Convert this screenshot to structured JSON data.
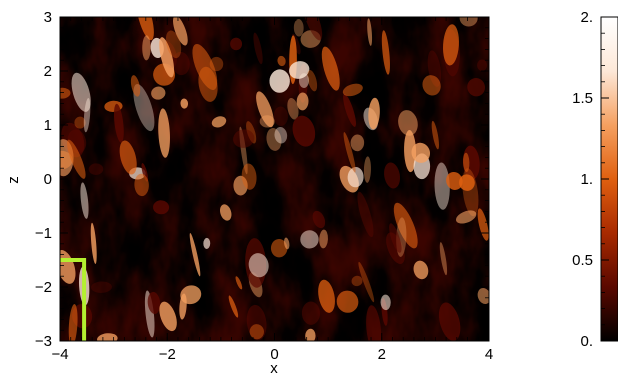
{
  "chart_data": [
    {
      "type": "heatmap",
      "xlabel": "x",
      "ylabel": "z",
      "xlim": [
        -4,
        4
      ],
      "ylim": [
        -3,
        3
      ],
      "xticks": [
        -4,
        -2,
        0,
        2,
        4
      ],
      "yticks": [
        -3,
        -2,
        -1,
        0,
        1,
        2,
        3
      ],
      "xtick_labels": [
        "−4",
        "−2",
        "0",
        "2",
        "4"
      ],
      "ytick_labels": [
        "−3",
        "−2",
        "−1",
        "0",
        "1",
        "2",
        "3"
      ],
      "colormap": [
        "#000000",
        "#5a0800",
        "#a82a00",
        "#e06010",
        "#f5a060",
        "#fde8d8",
        "#ffffff"
      ],
      "overlay": {
        "color": "#b4f030",
        "path": [
          [
            -4.0,
            -1.5
          ],
          [
            -3.55,
            -1.5
          ],
          [
            -3.55,
            -3.0
          ]
        ]
      }
    },
    {
      "type": "colorbar",
      "range": [
        0.0,
        2.0
      ],
      "ticks": [
        0.0,
        0.5,
        1.0,
        1.5,
        2.0
      ],
      "tick_labels": [
        "0.",
        "0.5",
        "1.",
        "1.5",
        "2."
      ]
    }
  ]
}
